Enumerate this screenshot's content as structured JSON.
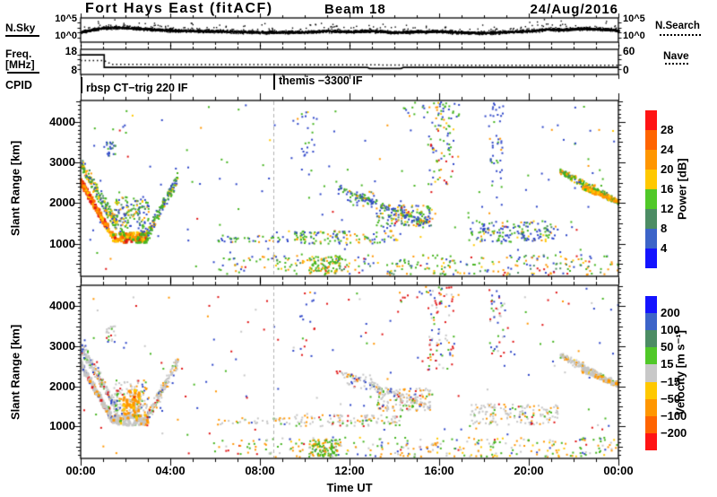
{
  "header": {
    "station_title": "Fort Hays East (fitACF)",
    "beam_label": "Beam 18",
    "date": "24/Aug/2016"
  },
  "time_axis": {
    "label": "Time UT",
    "tick_hours": [
      0,
      4,
      8,
      12,
      16,
      20,
      24
    ],
    "tick_labels": [
      "00:00",
      "04:00",
      "08:00",
      "12:00",
      "16:00",
      "20:00",
      "00:00"
    ]
  },
  "cpid_row": {
    "label": "CPID",
    "segments": [
      {
        "start_hour": 0,
        "text": "rbsp CT−trig 220 IF"
      },
      {
        "start_hour": 8.6,
        "text": "themis −3300 IF"
      }
    ]
  },
  "palette": {
    "blue": "#2e46c8",
    "steel": "#3c64c8",
    "teal": "#4c8c64",
    "green": "#44b41e",
    "yellow": "#ffc800",
    "orange": "#ff9600",
    "deeporange": "#ff6400",
    "red": "#e01414",
    "gray": "#c6c6c6"
  },
  "chart_data": [
    {
      "id": "noise",
      "type": "line",
      "left_label": "N.Sky",
      "right_label": "N.Search",
      "scale_top": "10^5",
      "scale_bottom": "10^0",
      "yscale": "log",
      "x_hours": [
        0,
        24
      ],
      "band_profile": [
        [
          0,
          0.56
        ],
        [
          0.8,
          0.42
        ],
        [
          1.5,
          0.37
        ],
        [
          2.5,
          0.42
        ],
        [
          4,
          0.5
        ],
        [
          6,
          0.53
        ],
        [
          8,
          0.58
        ],
        [
          10,
          0.57
        ],
        [
          11,
          0.52
        ],
        [
          12,
          0.55
        ],
        [
          13,
          0.52
        ],
        [
          14,
          0.58
        ],
        [
          15,
          0.55
        ],
        [
          16,
          0.54
        ],
        [
          17,
          0.58
        ],
        [
          18,
          0.6
        ],
        [
          19,
          0.56
        ],
        [
          20,
          0.52
        ],
        [
          20.8,
          0.45
        ],
        [
          21.5,
          0.47
        ],
        [
          22.3,
          0.42
        ],
        [
          23,
          0.44
        ],
        [
          23.7,
          0.47
        ],
        [
          24,
          0.52
        ]
      ]
    },
    {
      "id": "frequency",
      "type": "line",
      "left_label_line1": "Freq.",
      "left_label_line2": "[MHz]",
      "scale_top": "18",
      "scale_bottom": "8",
      "ylim": [
        8,
        18
      ],
      "right_label": "Nave",
      "right_scale_top": "60",
      "right_scale_bottom": "0",
      "right_ylim": [
        0,
        60
      ],
      "freq_series_mhz": [
        [
          0,
          15.8
        ],
        [
          1.05,
          15.8
        ],
        [
          1.05,
          10.8
        ],
        [
          12.8,
          10.8
        ],
        [
          12.9,
          10.4
        ],
        [
          14.3,
          10.4
        ],
        [
          14.4,
          10.8
        ],
        [
          24,
          10.8
        ]
      ],
      "nave_series": [
        [
          0,
          33
        ],
        [
          1.05,
          33
        ],
        [
          1.4,
          24
        ],
        [
          12,
          23
        ],
        [
          18,
          22
        ],
        [
          24,
          22
        ]
      ]
    },
    {
      "id": "power",
      "type": "scatter",
      "ylabel": "Slant Range [km]",
      "ylim": [
        200,
        4520
      ],
      "yticks": [
        1000,
        2000,
        3000,
        4000
      ],
      "dashed_line_hour": 8.6,
      "colorbar": {
        "label": "Power [dB]",
        "tick_labels": [
          "28",
          "24",
          "20",
          "16",
          "12",
          "8",
          "4"
        ],
        "colors_top_to_bottom": [
          "#ff1414",
          "#ff6400",
          "#ff9600",
          "#ffc800",
          "#50c828",
          "#4c8c64",
          "#3c64c8",
          "#1414ff"
        ]
      },
      "clusters": [
        {
          "type": "diag",
          "t0": 0.0,
          "r0": 2550,
          "t1": 1.45,
          "r1": 1150,
          "spread": 140,
          "n": 150,
          "size": 3,
          "colors": {
            "red": 35,
            "deeporange": 30,
            "orange": 25,
            "yellow": 10
          }
        },
        {
          "type": "diag",
          "t0": 0.05,
          "r0": 2950,
          "t1": 1.6,
          "r1": 1450,
          "spread": 260,
          "n": 190,
          "colors": {
            "green": 35,
            "yellow": 15,
            "orange": 15,
            "teal": 15,
            "blue": 20
          }
        },
        {
          "type": "box",
          "t0": 1.45,
          "t1": 3.0,
          "r0": 1030,
          "r1": 1280,
          "n": 130,
          "size": 3,
          "colors": {
            "orange": 30,
            "yellow": 20,
            "green": 25,
            "red": 10,
            "deeporange": 15
          }
        },
        {
          "type": "box",
          "t0": 1.5,
          "t1": 3.05,
          "r0": 1280,
          "r1": 2150,
          "n": 160,
          "colors": {
            "green": 40,
            "blue": 25,
            "teal": 15,
            "yellow": 10,
            "orange": 10
          }
        },
        {
          "type": "diag",
          "t0": 2.95,
          "r0": 1200,
          "t1": 4.35,
          "r1": 2650,
          "spread": 240,
          "n": 150,
          "colors": {
            "green": 40,
            "blue": 25,
            "teal": 15,
            "orange": 10,
            "yellow": 10
          }
        },
        {
          "type": "box",
          "t0": 1.15,
          "t1": 1.55,
          "r0": 3100,
          "r1": 3500,
          "n": 22,
          "colors": {
            "blue": 50,
            "green": 30,
            "teal": 20
          }
        },
        {
          "type": "box",
          "t0": 0,
          "t1": 24,
          "r0": 260,
          "r1": 4480,
          "n": 170,
          "colors": {
            "blue": 55,
            "green": 28,
            "orange": 9,
            "red": 4,
            "yellow": 4
          }
        },
        {
          "type": "box",
          "t0": 6.1,
          "t1": 9.4,
          "r0": 1040,
          "r1": 1210,
          "n": 40,
          "colors": {
            "green": 45,
            "blue": 35,
            "orange": 20
          }
        },
        {
          "type": "box",
          "t0": 9.5,
          "t1": 14.3,
          "r0": 1000,
          "r1": 1320,
          "n": 120,
          "colors": {
            "green": 40,
            "blue": 35,
            "yellow": 10,
            "orange": 15
          }
        },
        {
          "type": "box",
          "t0": 5.9,
          "t1": 8.3,
          "r0": 240,
          "r1": 680,
          "n": 28,
          "colors": {
            "green": 40,
            "blue": 30,
            "orange": 20,
            "red": 10
          }
        },
        {
          "type": "box",
          "t0": 8.3,
          "t1": 24,
          "r0": 230,
          "r1": 720,
          "n": 270,
          "colors": {
            "green": 32,
            "orange": 22,
            "blue": 18,
            "yellow": 12,
            "red": 8,
            "teal": 8
          }
        },
        {
          "type": "box",
          "t0": 10.2,
          "t1": 11.6,
          "r0": 260,
          "r1": 680,
          "n": 90,
          "colors": {
            "green": 62,
            "orange": 18,
            "yellow": 12,
            "teal": 8
          }
        },
        {
          "type": "diag",
          "t0": 11.4,
          "r0": 2380,
          "t1": 15.6,
          "r1": 1480,
          "spread": 110,
          "n": 120,
          "colors": {
            "blue": 40,
            "green": 35,
            "teal": 10,
            "orange": 8,
            "yellow": 7
          }
        },
        {
          "type": "box",
          "t0": 13.2,
          "t1": 15.7,
          "r0": 1380,
          "r1": 1950,
          "n": 150,
          "colors": {
            "green": 35,
            "blue": 30,
            "teal": 12,
            "orange": 12,
            "red": 5,
            "yellow": 6
          }
        },
        {
          "type": "box",
          "t0": 15.5,
          "t1": 16.7,
          "r0": 2400,
          "r1": 4480,
          "n": 80,
          "colors": {
            "green": 35,
            "blue": 30,
            "orange": 18,
            "yellow": 10,
            "red": 7
          }
        },
        {
          "type": "box",
          "t0": 17.4,
          "t1": 21.3,
          "r0": 1040,
          "r1": 1560,
          "n": 160,
          "colors": {
            "blue": 38,
            "green": 38,
            "teal": 10,
            "orange": 8,
            "yellow": 6
          }
        },
        {
          "type": "box",
          "t0": 18.2,
          "t1": 18.95,
          "r0": 2750,
          "r1": 4450,
          "n": 40,
          "colors": {
            "blue": 70,
            "green": 20,
            "red": 5,
            "orange": 5
          }
        },
        {
          "type": "diag",
          "t0": 21.4,
          "r0": 2780,
          "t1": 24.0,
          "r1": 2020,
          "spread": 130,
          "n": 230,
          "colors": {
            "green": 42,
            "orange": 20,
            "yellow": 14,
            "teal": 10,
            "blue": 14
          }
        },
        {
          "type": "diag",
          "t0": 22.4,
          "r0": 2380,
          "t1": 24.0,
          "r1": 2030,
          "spread": 55,
          "n": 90,
          "size": 3,
          "colors": {
            "orange": 45,
            "yellow": 25,
            "deeporange": 15,
            "green": 15
          }
        },
        {
          "type": "box",
          "t0": 14.2,
          "t1": 16.9,
          "r0": 4050,
          "r1": 4480,
          "n": 26,
          "colors": {
            "green": 45,
            "blue": 30,
            "orange": 25
          }
        },
        {
          "type": "box",
          "t0": 9.8,
          "t1": 10.5,
          "r0": 2700,
          "r1": 4350,
          "n": 18,
          "colors": {
            "blue": 60,
            "green": 40
          }
        },
        {
          "type": "box",
          "t0": 11.9,
          "t1": 13.1,
          "r0": 1900,
          "r1": 2300,
          "n": 35,
          "colors": {
            "blue": 45,
            "green": 30,
            "orange": 15,
            "teal": 10
          }
        }
      ]
    },
    {
      "id": "velocity",
      "type": "scatter",
      "ylabel": "Slant Range [km]",
      "ylim": [
        200,
        4520
      ],
      "yticks": [
        1000,
        2000,
        3000,
        4000
      ],
      "dashed_line_hour": 8.6,
      "colorbar": {
        "label": "Velocity [m s⁻¹]",
        "tick_labels": [
          "200",
          "100",
          "50",
          "15",
          "−15",
          "−50",
          "−100",
          "−200"
        ],
        "colors_top_to_bottom": [
          "#1414ff",
          "#3c64c8",
          "#4c8c64",
          "#50c828",
          "#c8c8c8",
          "#ffc800",
          "#ff9600",
          "#ff6400",
          "#ff1414"
        ]
      },
      "clusters": [
        {
          "type": "diag",
          "t0": 0.0,
          "r0": 2550,
          "t1": 1.45,
          "r1": 1150,
          "spread": 140,
          "n": 150,
          "size": 3,
          "colors": {
            "gray": 75,
            "orange": 10,
            "blue": 5,
            "green": 5,
            "red": 5
          }
        },
        {
          "type": "diag",
          "t0": 0.05,
          "r0": 2950,
          "t1": 1.6,
          "r1": 1450,
          "spread": 260,
          "n": 190,
          "colors": {
            "gray": 65,
            "blue": 10,
            "green": 10,
            "orange": 8,
            "red": 7
          }
        },
        {
          "type": "box",
          "t0": 1.45,
          "t1": 3.0,
          "r0": 1030,
          "r1": 1280,
          "n": 130,
          "size": 3,
          "colors": {
            "gray": 70,
            "orange": 18,
            "green": 8,
            "yellow": 4
          }
        },
        {
          "type": "box",
          "t0": 1.5,
          "t1": 3.05,
          "r0": 1280,
          "r1": 2150,
          "n": 150,
          "colors": {
            "gray": 58,
            "orange": 20,
            "green": 10,
            "blue": 7,
            "red": 5
          }
        },
        {
          "type": "box",
          "t0": 1.9,
          "t1": 2.65,
          "r0": 1300,
          "r1": 1900,
          "n": 60,
          "size": 3,
          "colors": {
            "orange": 70,
            "yellow": 20,
            "gray": 10
          }
        },
        {
          "type": "diag",
          "t0": 2.95,
          "r0": 1200,
          "t1": 4.35,
          "r1": 2650,
          "spread": 240,
          "n": 150,
          "colors": {
            "gray": 60,
            "orange": 16,
            "green": 10,
            "blue": 8,
            "red": 6
          }
        },
        {
          "type": "box",
          "t0": 1.15,
          "t1": 1.55,
          "r0": 3100,
          "r1": 3500,
          "n": 20,
          "colors": {
            "gray": 60,
            "green": 20,
            "red": 20
          }
        },
        {
          "type": "box",
          "t0": 0,
          "t1": 24,
          "r0": 260,
          "r1": 4480,
          "n": 170,
          "colors": {
            "red": 30,
            "blue": 30,
            "green": 18,
            "orange": 12,
            "gray": 10
          }
        },
        {
          "type": "box",
          "t0": 6.1,
          "t1": 9.4,
          "r0": 1040,
          "r1": 1210,
          "n": 35,
          "colors": {
            "gray": 60,
            "orange": 20,
            "green": 20
          }
        },
        {
          "type": "box",
          "t0": 9.5,
          "t1": 14.3,
          "r0": 1000,
          "r1": 1320,
          "n": 110,
          "colors": {
            "gray": 62,
            "orange": 14,
            "green": 14,
            "blue": 5,
            "red": 5
          }
        },
        {
          "type": "box",
          "t0": 5.9,
          "t1": 8.3,
          "r0": 240,
          "r1": 680,
          "n": 26,
          "colors": {
            "orange": 35,
            "green": 30,
            "gray": 20,
            "red": 15
          }
        },
        {
          "type": "box",
          "t0": 8.3,
          "t1": 24,
          "r0": 230,
          "r1": 720,
          "n": 270,
          "colors": {
            "orange": 30,
            "green": 26,
            "gray": 20,
            "yellow": 12,
            "red": 6,
            "blue": 6
          }
        },
        {
          "type": "box",
          "t0": 10.2,
          "t1": 11.6,
          "r0": 260,
          "r1": 680,
          "n": 95,
          "colors": {
            "green": 66,
            "orange": 16,
            "gray": 10,
            "yellow": 8
          }
        },
        {
          "type": "diag",
          "t0": 11.4,
          "r0": 2380,
          "t1": 15.6,
          "r1": 1480,
          "spread": 110,
          "n": 115,
          "colors": {
            "gray": 66,
            "orange": 12,
            "green": 10,
            "blue": 6,
            "red": 6
          }
        },
        {
          "type": "box",
          "t0": 13.2,
          "t1": 15.7,
          "r0": 1380,
          "r1": 1950,
          "n": 140,
          "colors": {
            "gray": 62,
            "orange": 14,
            "green": 10,
            "blue": 7,
            "red": 7
          }
        },
        {
          "type": "box",
          "t0": 15.5,
          "t1": 16.7,
          "r0": 2400,
          "r1": 4480,
          "n": 75,
          "colors": {
            "red": 28,
            "blue": 28,
            "gray": 22,
            "orange": 12,
            "green": 10
          }
        },
        {
          "type": "box",
          "t0": 17.4,
          "t1": 21.3,
          "r0": 1040,
          "r1": 1560,
          "n": 155,
          "colors": {
            "gray": 64,
            "orange": 14,
            "green": 10,
            "blue": 6,
            "red": 6
          }
        },
        {
          "type": "box",
          "t0": 18.2,
          "t1": 18.95,
          "r0": 2750,
          "r1": 4450,
          "n": 38,
          "colors": {
            "blue": 40,
            "red": 35,
            "gray": 15,
            "green": 10
          }
        },
        {
          "type": "diag",
          "t0": 21.4,
          "r0": 2780,
          "t1": 24.0,
          "r1": 2020,
          "spread": 130,
          "n": 240,
          "colors": {
            "gray": 74,
            "orange": 14,
            "yellow": 6,
            "green": 6
          }
        },
        {
          "type": "diag",
          "t0": 22.4,
          "r0": 2380,
          "t1": 24.0,
          "r1": 2030,
          "spread": 55,
          "n": 80,
          "size": 3,
          "colors": {
            "gray": 55,
            "orange": 35,
            "yellow": 10
          }
        },
        {
          "type": "box",
          "t0": 14.2,
          "t1": 16.9,
          "r0": 4050,
          "r1": 4480,
          "n": 24,
          "colors": {
            "red": 35,
            "blue": 30,
            "green": 20,
            "orange": 15
          }
        },
        {
          "type": "box",
          "t0": 9.8,
          "t1": 10.5,
          "r0": 2700,
          "r1": 4350,
          "n": 16,
          "colors": {
            "blue": 50,
            "red": 50
          }
        },
        {
          "type": "box",
          "t0": 11.9,
          "t1": 13.1,
          "r0": 1900,
          "r1": 2300,
          "n": 30,
          "colors": {
            "gray": 50,
            "blue": 20,
            "orange": 15,
            "red": 15
          }
        }
      ]
    }
  ]
}
